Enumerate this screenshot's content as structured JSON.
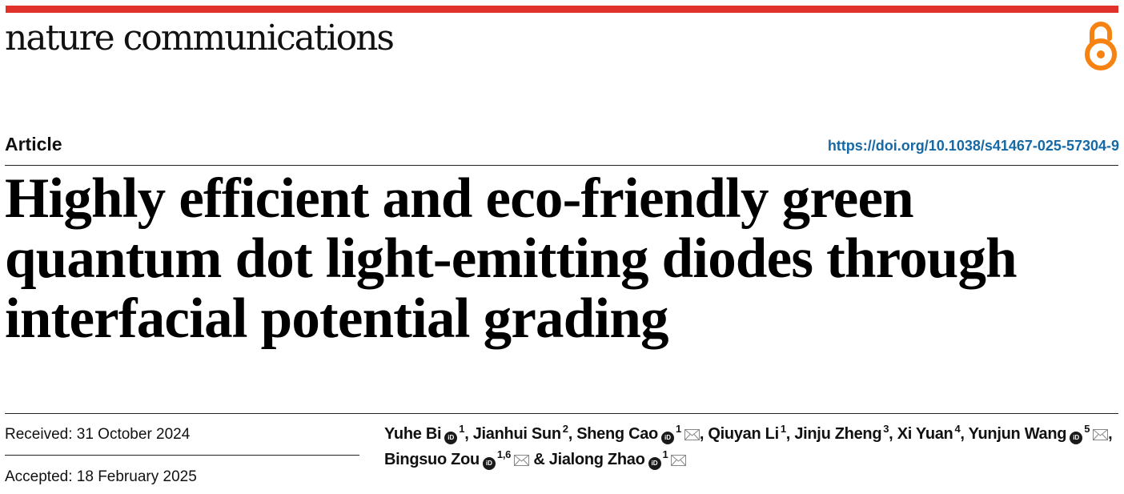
{
  "journal": {
    "name": "nature communications"
  },
  "article_type": "Article",
  "doi": "https://doi.org/10.1038/s41467-025-57304-9",
  "title": "Highly efficient and eco-friendly green quantum dot light-emitting diodes through interfacial potential grading",
  "dates": {
    "received": "Received: 31 October 2024",
    "accepted": "Accepted: 18 February 2025"
  },
  "authors": [
    {
      "name": "Yuhe Bi",
      "sup": "1",
      "orcid": true,
      "email": false,
      "sep": ", "
    },
    {
      "name": "Jianhui Sun",
      "sup": "2",
      "orcid": false,
      "email": false,
      "sep": ", "
    },
    {
      "name": "Sheng Cao",
      "sup": "1",
      "orcid": true,
      "email": true,
      "sep": ", "
    },
    {
      "name": "Qiuyan Li",
      "sup": "1",
      "orcid": false,
      "email": false,
      "sep": ", "
    },
    {
      "name": "Jinju Zheng",
      "sup": "3",
      "orcid": false,
      "email": false,
      "sep": ", "
    },
    {
      "name": "Xi Yuan",
      "sup": "4",
      "orcid": false,
      "email": false,
      "sep": ", "
    },
    {
      "name": "Yunjun Wang",
      "sup": "5",
      "orcid": true,
      "email": true,
      "sep": ", "
    },
    {
      "name": "Bingsuo Zou",
      "sup": "1,6",
      "orcid": true,
      "email": true,
      "sep": " & "
    },
    {
      "name": "Jialong Zhao",
      "sup": "1",
      "orcid": true,
      "email": true,
      "sep": ""
    }
  ],
  "icons": {
    "open_access": "open-access-lock-icon",
    "orcid": "orcid-icon",
    "email": "envelope-icon"
  },
  "colors": {
    "accent_bar": "#e0322a",
    "doi_link": "#1769a6",
    "open_access": "#f68212"
  }
}
